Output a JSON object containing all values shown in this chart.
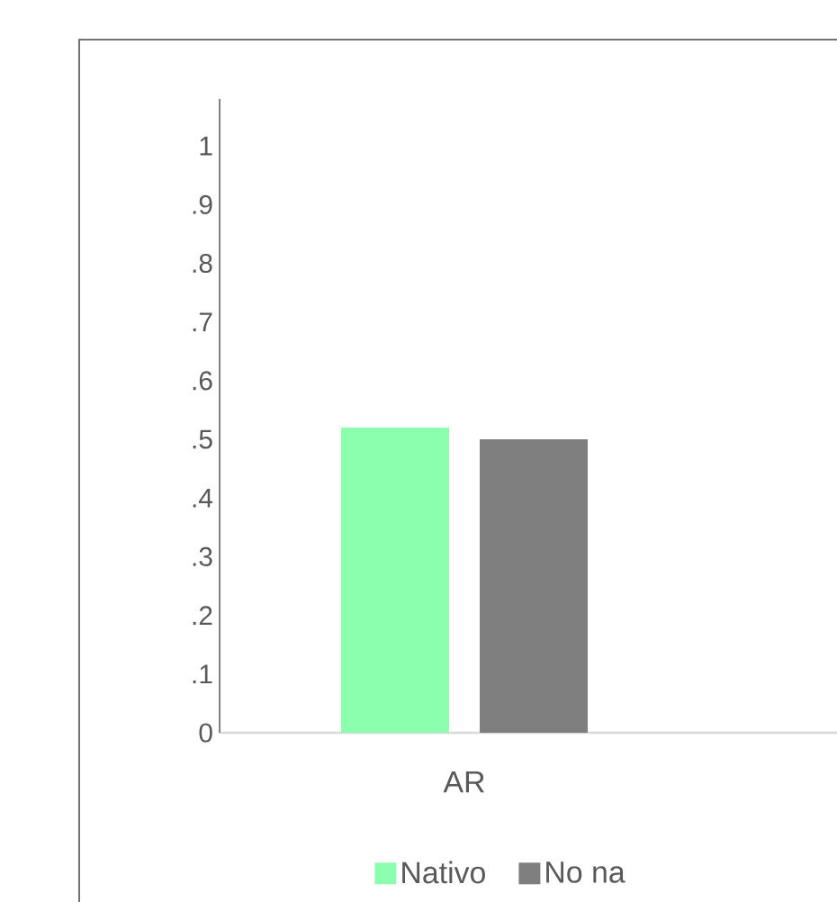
{
  "chart_data": {
    "type": "bar",
    "categories": [
      "AR"
    ],
    "series": [
      {
        "name": "Nativo",
        "color": "#8cffae",
        "values": [
          0.52
        ]
      },
      {
        "name": "No na",
        "color": "#7f7f7f",
        "values": [
          0.5
        ]
      }
    ],
    "ylim": [
      0,
      1.08
    ],
    "yticks": [
      0,
      {
        "value": 0.1,
        "label": ".1"
      },
      {
        "value": 0.2,
        "label": ".2"
      },
      {
        "value": 0.3,
        "label": ".3"
      },
      {
        "value": 0.4,
        "label": ".4"
      },
      {
        "value": 0.5,
        "label": ".5"
      },
      {
        "value": 0.6,
        "label": ".6"
      },
      {
        "value": 0.7,
        "label": ".7"
      },
      {
        "value": 0.8,
        "label": ".8"
      },
      {
        "value": 0.9,
        "label": ".9"
      },
      1
    ],
    "legend": "bottom"
  }
}
